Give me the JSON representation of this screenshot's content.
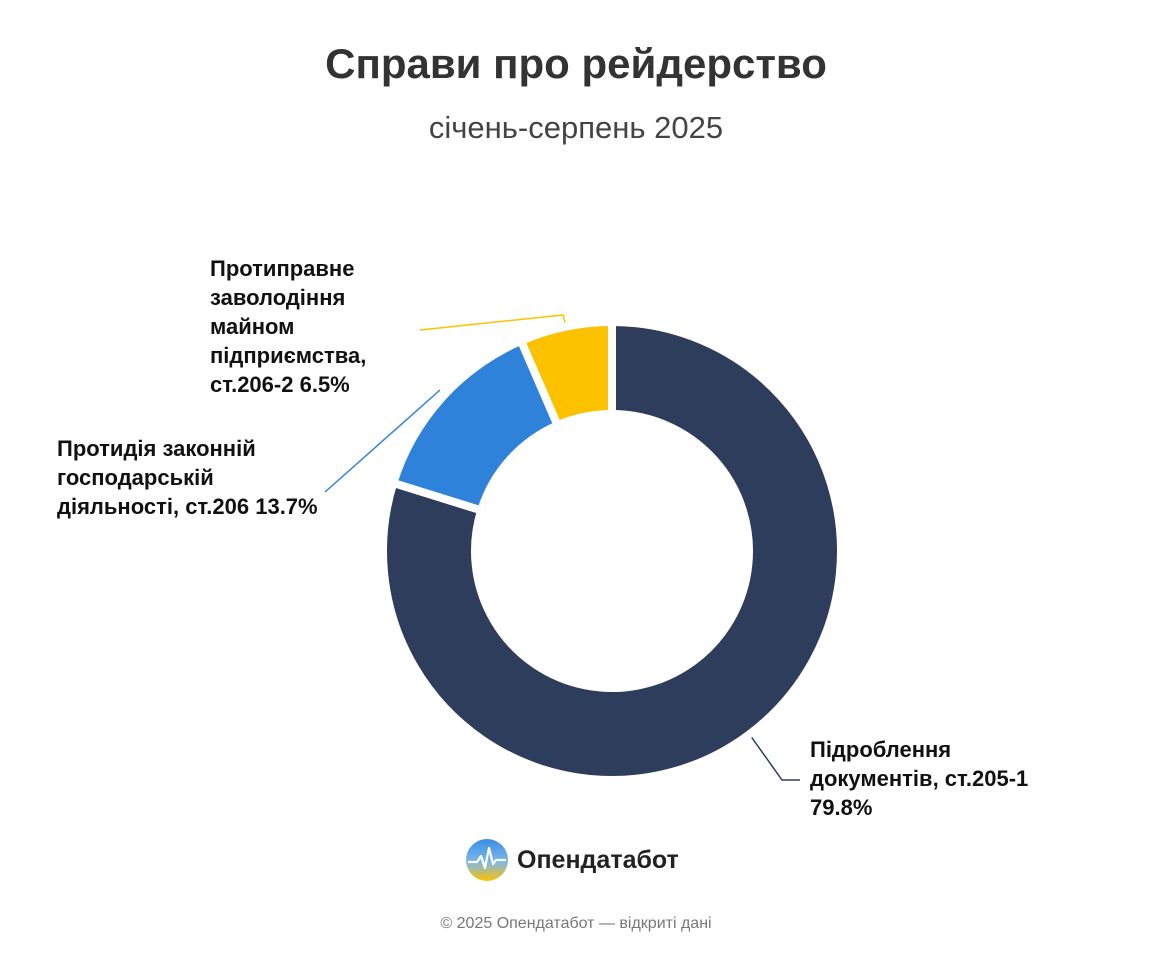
{
  "chart_data": {
    "type": "donut",
    "title": "Справи про рейдерство",
    "subtitle": "січень-серпень 2025",
    "categories": [
      "Підроблення документів, ст.205-1",
      "Протидія законній господарській діяльності, ст.206",
      "Протиправне заволодіння майном підприємства, ст.206-2"
    ],
    "values": [
      79.8,
      13.7,
      6.5
    ],
    "value_labels": [
      "79.8%",
      "13.7%",
      "6.5%"
    ],
    "colors": [
      "#2f3d5c",
      "#2f82d9",
      "#fcc200"
    ]
  },
  "brand": "Опендатабот",
  "footer": "© 2025 Опендатабот — відкриті дані"
}
